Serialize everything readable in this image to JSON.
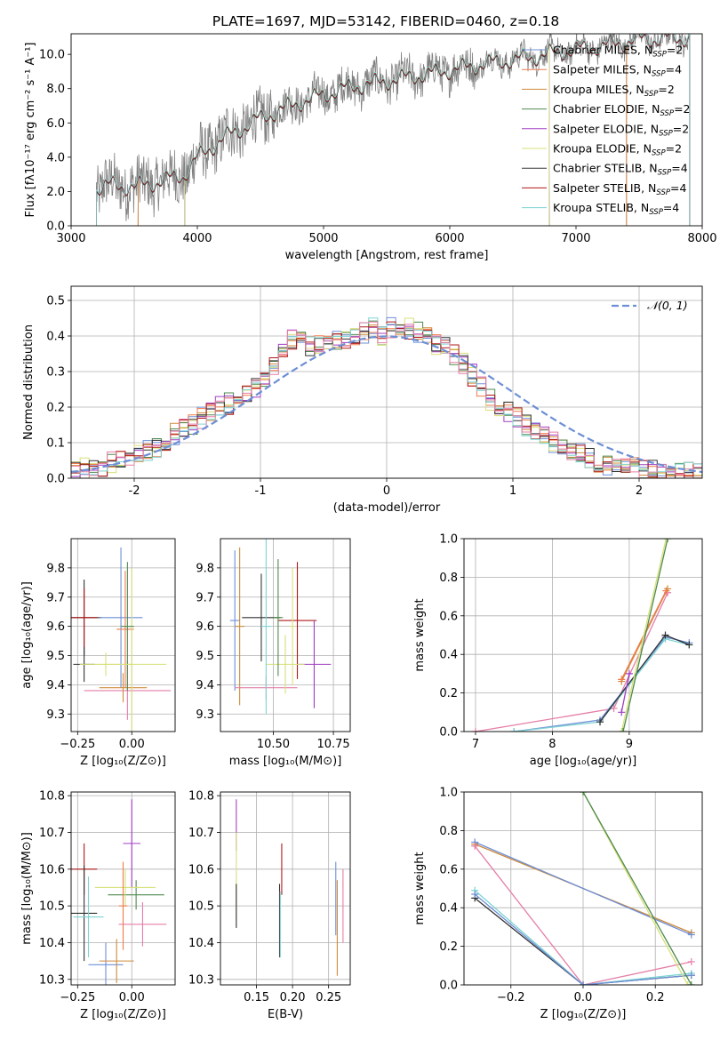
{
  "figure_title": "PLATE=1697, MJD=53142, FIBERID=0460, z=0.18",
  "colors": {
    "chabrier_miles": "#6d8fd6",
    "salpeter_miles": "#f07b4c",
    "kroupa_miles": "#cf8a3a",
    "chabrier_elodie": "#4e8a4e",
    "salpeter_elodie": "#a13fc4",
    "kroupa_elodie": "#d8e07a",
    "chabrier_stelib": "#333333",
    "salpeter_stelib": "#b01818",
    "kroupa_stelib": "#7ed3d3",
    "data": "#808080",
    "normal": "#6d8fd6",
    "pink": "#e57ea8"
  },
  "legend_spectrum": [
    {
      "base": "Chabrier MILES, N",
      "sub": "SSP",
      "tail": "=2",
      "color_key": "chabrier_miles"
    },
    {
      "base": "Salpeter MILES, N",
      "sub": "SSP",
      "tail": "=4",
      "color_key": "salpeter_miles"
    },
    {
      "base": "Kroupa MILES, N",
      "sub": "SSP",
      "tail": "=2",
      "color_key": "kroupa_miles"
    },
    {
      "base": "Chabrier ELODIE, N",
      "sub": "SSP",
      "tail": "=2",
      "color_key": "chabrier_elodie"
    },
    {
      "base": "Salpeter ELODIE, N",
      "sub": "SSP",
      "tail": "=2",
      "color_key": "salpeter_elodie"
    },
    {
      "base": "Kroupa ELODIE, N",
      "sub": "SSP",
      "tail": "=2",
      "color_key": "kroupa_elodie"
    },
    {
      "base": "Chabrier STELIB, N",
      "sub": "SSP",
      "tail": "=4",
      "color_key": "chabrier_stelib"
    },
    {
      "base": "Salpeter STELIB, N",
      "sub": "SSP",
      "tail": "=4",
      "color_key": "salpeter_stelib"
    },
    {
      "base": "Kroupa STELIB, N",
      "sub": "SSP",
      "tail": "=4",
      "color_key": "kroupa_stelib"
    }
  ],
  "legend_hist": "𝒩(0, 1)",
  "chart_data": [
    {
      "id": "spectrum",
      "type": "line",
      "xlabel": "wavelength [Angstrom, rest frame]",
      "ylabel": "Flux [fλ10⁻¹⁷ erg cm⁻² s⁻¹ A⁻¹]",
      "xlim": [
        3000,
        8000
      ],
      "ylim": [
        0,
        11.2
      ],
      "xticks": [
        3000,
        4000,
        5000,
        6000,
        7000,
        8000
      ],
      "yticks": [
        0,
        2,
        4,
        6,
        8,
        10
      ],
      "grid": false,
      "legend": "upper right",
      "data_range": [
        3200,
        7900
      ],
      "continuum_anchors": {
        "x": [
          3200,
          3300,
          3500,
          3700,
          3900,
          4000,
          4200,
          4500,
          4800,
          5200,
          5600,
          6000,
          6300,
          6600,
          6900,
          7200,
          7500,
          7900
        ],
        "y": [
          2.2,
          2.4,
          2.3,
          2.6,
          3.0,
          4.0,
          5.1,
          6.3,
          7.2,
          8.1,
          8.6,
          9.1,
          9.5,
          9.8,
          10.2,
          10.5,
          10.9,
          11.0
        ]
      },
      "model_cutoffs": [
        3530,
        3900,
        6790,
        7400
      ]
    },
    {
      "id": "residuals",
      "type": "line",
      "xlabel": "(data-model)/error",
      "ylabel": "Normed distribution",
      "xlim": [
        -2.5,
        2.5
      ],
      "ylim": [
        0,
        0.54
      ],
      "xticks": [
        -2,
        -1,
        0,
        1,
        2
      ],
      "yticks": [
        0.0,
        0.1,
        0.2,
        0.3,
        0.4,
        0.5
      ],
      "grid": true,
      "legend": "upper right",
      "bin_width": 0.1,
      "base_histogram": [
        0.025,
        0.028,
        0.03,
        0.035,
        0.042,
        0.05,
        0.06,
        0.07,
        0.08,
        0.09,
        0.11,
        0.125,
        0.14,
        0.15,
        0.17,
        0.19,
        0.2,
        0.21,
        0.22,
        0.24,
        0.26,
        0.29,
        0.32,
        0.36,
        0.39,
        0.38,
        0.37,
        0.37,
        0.38,
        0.39,
        0.39,
        0.4,
        0.41,
        0.42,
        0.4,
        0.42,
        0.41,
        0.42,
        0.41,
        0.4,
        0.38,
        0.37,
        0.35,
        0.32,
        0.29,
        0.26,
        0.22,
        0.2,
        0.19,
        0.17,
        0.15,
        0.14,
        0.12,
        0.1,
        0.085,
        0.075,
        0.065,
        0.055,
        0.045,
        0.04,
        0.035,
        0.03,
        0.028,
        0.025,
        0.022,
        0.02,
        0.02,
        0.018,
        0.017,
        0.016
      ]
    },
    {
      "id": "age_vs_z",
      "type": "scatter",
      "xlabel": "Z [log₁₀(Z/Z⊙)]",
      "ylabel": "age  [log₁₀(age/yr)]",
      "xlim": [
        -0.28,
        0.2
      ],
      "ylim": [
        9.24,
        9.9
      ],
      "xticks": [
        -0.25,
        0.0
      ],
      "xticklabels": [
        "−0.25",
        "0.00"
      ],
      "yticks": [
        9.3,
        9.4,
        9.5,
        9.6,
        9.7,
        9.8
      ],
      "grid": true,
      "points": [
        {
          "x": -0.22,
          "y": 9.63,
          "xerr": 0.08,
          "yerr": 0.13,
          "c": "chabrier_stelib"
        },
        {
          "x": -0.22,
          "y": 9.63,
          "xerr": 0.06,
          "yerr": 0.1,
          "c": "salpeter_stelib"
        },
        {
          "x": -0.22,
          "y": 9.47,
          "xerr": 0.05,
          "yerr": 0.06,
          "c": "chabrier_stelib"
        },
        {
          "x": -0.05,
          "y": 9.63,
          "xerr": 0.1,
          "yerr": 0.24,
          "c": "chabrier_miles"
        },
        {
          "x": -0.02,
          "y": 9.38,
          "xerr": 0.2,
          "yerr": 0.1,
          "c": "pink"
        },
        {
          "x": -0.04,
          "y": 9.39,
          "xerr": 0.11,
          "yerr": 0.05,
          "c": "kroupa_miles"
        },
        {
          "x": -0.03,
          "y": 9.59,
          "xerr": 0.04,
          "yerr": 0.2,
          "c": "salpeter_miles"
        },
        {
          "x": 0.0,
          "y": 9.47,
          "xerr": 0.16,
          "yerr": 0.33,
          "c": "kroupa_elodie"
        },
        {
          "x": -0.02,
          "y": 9.6,
          "xerr": 0.03,
          "yerr": 0.22,
          "c": "chabrier_elodie"
        },
        {
          "x": -0.12,
          "y": 9.47,
          "xerr": 0.12,
          "yerr": 0.04,
          "c": "kroupa_elodie"
        }
      ]
    },
    {
      "id": "age_vs_mass",
      "type": "scatter",
      "xlabel": "mass [log₁₀(M/M⊙)]",
      "ylabel": "",
      "xlim": [
        10.28,
        10.82
      ],
      "ylim": [
        9.24,
        9.9
      ],
      "xticks": [
        10.5,
        10.75
      ],
      "xticklabels": [
        "10.50",
        "10.75"
      ],
      "yticks": [
        9.3,
        9.4,
        9.5,
        9.6,
        9.7,
        9.8
      ],
      "grid": true,
      "points": [
        {
          "x": 10.34,
          "y": 9.62,
          "xerr": 0.02,
          "yerr": 0.24,
          "c": "chabrier_miles"
        },
        {
          "x": 10.36,
          "y": 9.6,
          "xerr": 0.02,
          "yerr": 0.27,
          "c": "kroupa_miles"
        },
        {
          "x": 10.47,
          "y": 9.39,
          "xerr": 0.13,
          "yerr": 0.04,
          "c": "pink"
        },
        {
          "x": 10.45,
          "y": 9.63,
          "xerr": 0.08,
          "yerr": 0.15,
          "c": "chabrier_stelib"
        },
        {
          "x": 10.6,
          "y": 9.62,
          "xerr": 0.08,
          "yerr": 0.2,
          "c": "salpeter_stelib"
        },
        {
          "x": 10.67,
          "y": 9.47,
          "xerr": 0.07,
          "yerr": 0.15,
          "c": "salpeter_elodie"
        },
        {
          "x": 10.55,
          "y": 9.47,
          "xerr": 0.08,
          "yerr": 0.1,
          "c": "kroupa_elodie"
        },
        {
          "x": 10.52,
          "y": 9.63,
          "xerr": 0.02,
          "yerr": 0.2,
          "c": "chabrier_elodie"
        },
        {
          "x": 10.58,
          "y": 9.6,
          "xerr": 0.01,
          "yerr": 0.2,
          "c": "kroupa_elodie"
        },
        {
          "x": 10.47,
          "y": 9.6,
          "xerr": 0.02,
          "yerr": 0.3,
          "c": "kroupa_stelib"
        }
      ]
    },
    {
      "id": "weight_vs_age",
      "type": "line",
      "xlabel": "age  [log₁₀(age/yr)]",
      "ylabel": "mass weight",
      "xlim": [
        6.85,
        9.95
      ],
      "ylim": [
        0,
        1.0
      ],
      "xticks": [
        7,
        8,
        9
      ],
      "yticks": [
        0.0,
        0.2,
        0.4,
        0.6,
        0.8,
        1.0
      ],
      "grid": true,
      "series": [
        {
          "c": "pink",
          "x": [
            7.0,
            8.8,
            9.5
          ],
          "y": [
            0.0,
            0.12,
            0.72
          ]
        },
        {
          "c": "kroupa_miles",
          "x": [
            8.9,
            9.5
          ],
          "y": [
            0.26,
            0.74
          ]
        },
        {
          "c": "salpeter_miles",
          "x": [
            8.9,
            9.48
          ],
          "y": [
            0.27,
            0.73
          ]
        },
        {
          "c": "chabrier_miles",
          "x": [
            7.5,
            8.62,
            9.47,
            9.78
          ],
          "y": [
            0.0,
            0.06,
            0.49,
            0.46
          ]
        },
        {
          "c": "kroupa_stelib",
          "x": [
            7.5,
            8.62,
            9.47,
            9.78
          ],
          "y": [
            0.0,
            0.05,
            0.48,
            0.45
          ]
        },
        {
          "c": "chabrier_stelib",
          "x": [
            8.62,
            9.47,
            9.78
          ],
          "y": [
            0.05,
            0.5,
            0.45
          ]
        },
        {
          "c": "kroupa_elodie",
          "x": [
            8.9,
            9.48
          ],
          "y": [
            0.0,
            1.0
          ]
        },
        {
          "c": "chabrier_elodie",
          "x": [
            8.92,
            9.5
          ],
          "y": [
            0.0,
            1.0
          ]
        },
        {
          "c": "salpeter_elodie",
          "x": [
            8.9,
            9.0
          ],
          "y": [
            0.1,
            0.3
          ]
        }
      ]
    },
    {
      "id": "mass_vs_z",
      "type": "scatter",
      "xlabel": "Z [log₁₀(Z/Z⊙)]",
      "ylabel": "mass [log₁₀(M/M⊙)]",
      "xlim": [
        -0.28,
        0.2
      ],
      "ylim": [
        10.285,
        10.81
      ],
      "xticks": [
        -0.25,
        0.0
      ],
      "xticklabels": [
        "−0.25",
        "0.00"
      ],
      "yticks": [
        10.3,
        10.4,
        10.5,
        10.6,
        10.7,
        10.8
      ],
      "grid": true,
      "points": [
        {
          "x": -0.22,
          "y": 10.6,
          "xerr": 0.06,
          "yerr": 0.07,
          "c": "salpeter_stelib"
        },
        {
          "x": -0.22,
          "y": 10.48,
          "xerr": 0.06,
          "yerr": 0.13,
          "c": "chabrier_stelib"
        },
        {
          "x": -0.2,
          "y": 10.47,
          "xerr": 0.07,
          "yerr": 0.11,
          "c": "kroupa_stelib"
        },
        {
          "x": -0.12,
          "y": 10.34,
          "xerr": 0.08,
          "yerr": 0.06,
          "c": "chabrier_miles"
        },
        {
          "x": -0.07,
          "y": 10.35,
          "xerr": 0.08,
          "yerr": 0.06,
          "c": "kroupa_miles"
        },
        {
          "x": 0.0,
          "y": 10.67,
          "xerr": 0.04,
          "yerr": 0.12,
          "c": "salpeter_elodie"
        },
        {
          "x": 0.05,
          "y": 10.45,
          "xerr": 0.11,
          "yerr": 0.06,
          "c": "pink"
        },
        {
          "x": 0.02,
          "y": 10.53,
          "xerr": 0.13,
          "yerr": 0.04,
          "c": "chabrier_elodie"
        },
        {
          "x": -0.03,
          "y": 10.55,
          "xerr": 0.14,
          "yerr": 0.05,
          "c": "kroupa_elodie"
        },
        {
          "x": -0.04,
          "y": 10.5,
          "xerr": 0.02,
          "yerr": 0.12,
          "c": "salpeter_miles"
        }
      ]
    },
    {
      "id": "mass_vs_ebv",
      "type": "scatter",
      "xlabel": "E(B-V)",
      "ylabel": "",
      "xlim": [
        0.1,
        0.28
      ],
      "ylim": [
        10.285,
        10.81
      ],
      "xticks": [
        0.15,
        0.2,
        0.25
      ],
      "xticklabels": [
        "0.15",
        "0.20",
        "0.25"
      ],
      "yticks": [
        10.3,
        10.4,
        10.5,
        10.6,
        10.7,
        10.8
      ],
      "grid": true,
      "points": [
        {
          "x": 0.122,
          "y": 10.72,
          "xerr": 0,
          "yerr": 0.07,
          "c": "salpeter_elodie"
        },
        {
          "x": 0.122,
          "y": 10.58,
          "xerr": 0,
          "yerr": 0.12,
          "c": "kroupa_elodie"
        },
        {
          "x": 0.122,
          "y": 10.5,
          "xerr": 0,
          "yerr": 0.06,
          "c": "chabrier_stelib"
        },
        {
          "x": 0.182,
          "y": 10.46,
          "xerr": 0,
          "yerr": 0.1,
          "c": "chabrier_stelib"
        },
        {
          "x": 0.183,
          "y": 10.45,
          "xerr": 0,
          "yerr": 0.09,
          "c": "kroupa_stelib"
        },
        {
          "x": 0.185,
          "y": 10.6,
          "xerr": 0,
          "yerr": 0.07,
          "c": "salpeter_stelib"
        },
        {
          "x": 0.26,
          "y": 10.52,
          "xerr": 0,
          "yerr": 0.1,
          "c": "chabrier_miles"
        },
        {
          "x": 0.262,
          "y": 10.44,
          "xerr": 0,
          "yerr": 0.13,
          "c": "kroupa_miles"
        },
        {
          "x": 0.27,
          "y": 10.5,
          "xerr": 0,
          "yerr": 0.1,
          "c": "pink"
        }
      ]
    },
    {
      "id": "weight_vs_z",
      "type": "line",
      "xlabel": "Z [log₁₀(Z/Z⊙)]",
      "ylabel": "mass weight",
      "xlim": [
        -0.33,
        0.33
      ],
      "ylim": [
        0,
        1.0
      ],
      "xticks": [
        -0.2,
        0.0,
        0.2
      ],
      "xticklabels": [
        "−0.2",
        "0.0",
        "0.2"
      ],
      "yticks": [
        0.0,
        0.2,
        0.4,
        0.6,
        0.8,
        1.0
      ],
      "grid": true,
      "series": [
        {
          "c": "kroupa_miles",
          "x": [
            -0.3,
            0.3
          ],
          "y": [
            0.73,
            0.27
          ]
        },
        {
          "c": "chabrier_miles",
          "x": [
            -0.3,
            0.3
          ],
          "y": [
            0.74,
            0.26
          ]
        },
        {
          "c": "pink",
          "x": [
            -0.3,
            0.0,
            0.3
          ],
          "y": [
            0.72,
            0.0,
            0.12
          ]
        },
        {
          "c": "chabrier_stelib",
          "x": [
            -0.3,
            0.0,
            0.3
          ],
          "y": [
            0.45,
            0.0,
            0.05
          ]
        },
        {
          "c": "kroupa_stelib",
          "x": [
            -0.3,
            0.0,
            0.3
          ],
          "y": [
            0.49,
            0.0,
            0.06
          ]
        },
        {
          "c": "chabrier_miles",
          "x": [
            -0.3,
            0.0,
            0.3
          ],
          "y": [
            0.47,
            0.0,
            0.05
          ]
        },
        {
          "c": "kroupa_elodie",
          "x": [
            0.0,
            0.29
          ],
          "y": [
            1.0,
            0.0
          ]
        },
        {
          "c": "chabrier_elodie",
          "x": [
            0.0,
            0.3
          ],
          "y": [
            1.0,
            0.0
          ]
        }
      ]
    }
  ]
}
